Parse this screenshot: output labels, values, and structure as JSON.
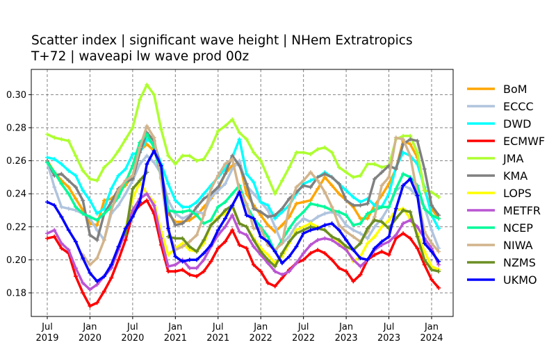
{
  "chart_data": {
    "type": "line",
    "title": [
      "Scatter index  |  significant wave height | NHem Extratropics",
      "T+72  |  waveapi lw wave prod 00z"
    ],
    "xlabel": "",
    "ylabel": "",
    "x_start": "2019-07",
    "x_step": "1 month",
    "xticks": [
      {
        "month": "2019-07",
        "label": [
          "Jul",
          "2019"
        ]
      },
      {
        "month": "2020-01",
        "label": [
          "Jan",
          "2020"
        ]
      },
      {
        "month": "2020-07",
        "label": [
          "Jul",
          "2020"
        ]
      },
      {
        "month": "2021-01",
        "label": [
          "Jan",
          "2021"
        ]
      },
      {
        "month": "2021-07",
        "label": [
          "Jul",
          "2021"
        ]
      },
      {
        "month": "2022-01",
        "label": [
          "Jan",
          "2022"
        ]
      },
      {
        "month": "2022-07",
        "label": [
          "Jul",
          "2022"
        ]
      },
      {
        "month": "2023-01",
        "label": [
          "Jan",
          "2023"
        ]
      },
      {
        "month": "2023-07",
        "label": [
          "Jul",
          "2023"
        ]
      },
      {
        "month": "2024-01",
        "label": [
          "Jan",
          "2024"
        ]
      }
    ],
    "yticks": [
      "0.18",
      "0.20",
      "0.22",
      "0.24",
      "0.26",
      "0.28",
      "0.30"
    ],
    "ylim": [
      0.1657,
      0.3153
    ],
    "grid": true,
    "legend_placement": "outside-right",
    "series": [
      {
        "name": "BoM",
        "color": "#ffa500",
        "values": [
          0.26,
          0.253,
          0.248,
          0.244,
          0.237,
          0.23,
          0.222,
          0.221,
          0.236,
          0.237,
          0.241,
          0.245,
          0.251,
          0.266,
          0.27,
          0.266,
          0.255,
          0.228,
          0.223,
          0.223,
          0.224,
          0.227,
          0.232,
          0.237,
          0.243,
          0.252,
          0.257,
          0.259,
          0.24,
          0.233,
          0.227,
          0.221,
          0.217,
          0.221,
          0.226,
          0.234,
          0.235,
          0.236,
          0.243,
          0.25,
          0.245,
          0.24,
          0.236,
          0.232,
          0.225,
          0.225,
          0.233,
          0.239,
          0.246,
          0.255,
          0.272,
          0.27,
          0.262,
          0.242,
          0.231,
          0.225
        ]
      },
      {
        "name": "ECCC",
        "color": "#b0c4de",
        "values": [
          0.259,
          0.244,
          0.232,
          0.231,
          0.23,
          0.228,
          0.225,
          0.218,
          0.212,
          0.228,
          0.233,
          0.24,
          0.248,
          0.258,
          0.263,
          0.259,
          0.252,
          0.236,
          0.228,
          0.225,
          0.227,
          0.229,
          0.228,
          0.238,
          0.242,
          0.246,
          0.255,
          0.26,
          0.245,
          0.24,
          0.235,
          0.23,
          0.22,
          0.21,
          0.214,
          0.221,
          0.225,
          0.223,
          0.226,
          0.228,
          0.229,
          0.227,
          0.221,
          0.218,
          0.216,
          0.213,
          0.22,
          0.225,
          0.232,
          0.242,
          0.245,
          0.243,
          0.238,
          0.232,
          0.218,
          0.207
        ]
      },
      {
        "name": "DWD",
        "color": "#00ffff",
        "values": [
          0.262,
          0.261,
          0.258,
          0.254,
          0.251,
          0.242,
          0.236,
          0.228,
          0.231,
          0.243,
          0.251,
          0.255,
          0.264,
          0.265,
          0.273,
          0.27,
          0.258,
          0.246,
          0.236,
          0.232,
          0.232,
          0.235,
          0.24,
          0.245,
          0.25,
          0.255,
          0.262,
          0.273,
          0.252,
          0.247,
          0.235,
          0.233,
          0.225,
          0.229,
          0.233,
          0.24,
          0.246,
          0.248,
          0.25,
          0.253,
          0.25,
          0.246,
          0.242,
          0.238,
          0.235,
          0.237,
          0.233,
          0.232,
          0.24,
          0.256,
          0.265,
          0.263,
          0.258,
          0.244,
          0.227,
          0.219
        ]
      },
      {
        "name": "ECMWF",
        "color": "#ff0000",
        "values": [
          0.213,
          0.214,
          0.207,
          0.204,
          0.19,
          0.18,
          0.172,
          0.174,
          0.181,
          0.189,
          0.2,
          0.212,
          0.228,
          0.233,
          0.236,
          0.228,
          0.209,
          0.193,
          0.193,
          0.194,
          0.191,
          0.19,
          0.193,
          0.199,
          0.207,
          0.211,
          0.218,
          0.209,
          0.207,
          0.197,
          0.193,
          0.186,
          0.184,
          0.189,
          0.194,
          0.198,
          0.2,
          0.204,
          0.206,
          0.204,
          0.2,
          0.195,
          0.193,
          0.187,
          0.191,
          0.2,
          0.203,
          0.205,
          0.203,
          0.213,
          0.216,
          0.213,
          0.207,
          0.197,
          0.188,
          0.183
        ]
      },
      {
        "name": "JMA",
        "color": "#adff2f",
        "values": [
          0.276,
          0.274,
          0.273,
          0.272,
          0.263,
          0.254,
          0.249,
          0.248,
          0.256,
          0.26,
          0.266,
          0.273,
          0.28,
          0.297,
          0.306,
          0.3,
          0.279,
          0.263,
          0.258,
          0.263,
          0.263,
          0.26,
          0.261,
          0.268,
          0.278,
          0.281,
          0.285,
          0.277,
          0.273,
          0.265,
          0.26,
          0.25,
          0.24,
          0.248,
          0.256,
          0.265,
          0.265,
          0.264,
          0.267,
          0.268,
          0.265,
          0.256,
          0.253,
          0.25,
          0.251,
          0.258,
          0.258,
          0.256,
          0.257,
          0.273,
          0.275,
          0.275,
          0.265,
          0.242,
          0.241,
          0.238
        ]
      },
      {
        "name": "KMA",
        "color": "#808080",
        "values": [
          0.26,
          0.251,
          0.252,
          0.248,
          0.244,
          0.236,
          0.215,
          0.212,
          0.228,
          0.235,
          0.243,
          0.247,
          0.249,
          0.265,
          0.277,
          0.272,
          0.255,
          0.23,
          0.221,
          0.222,
          0.226,
          0.232,
          0.237,
          0.24,
          0.244,
          0.252,
          0.263,
          0.257,
          0.246,
          0.231,
          0.229,
          0.226,
          0.227,
          0.231,
          0.237,
          0.241,
          0.245,
          0.244,
          0.25,
          0.252,
          0.25,
          0.246,
          0.236,
          0.233,
          0.233,
          0.234,
          0.249,
          0.253,
          0.257,
          0.255,
          0.27,
          0.273,
          0.272,
          0.255,
          0.233,
          0.227
        ]
      },
      {
        "name": "LOPS",
        "color": "#ffff00",
        "values": [
          null,
          null,
          null,
          null,
          null,
          null,
          null,
          null,
          null,
          null,
          null,
          0.219,
          0.237,
          0.247,
          0.24,
          0.235,
          0.217,
          0.203,
          0.207,
          0.21,
          0.206,
          0.205,
          0.21,
          0.221,
          0.226,
          0.228,
          0.232,
          0.222,
          0.22,
          0.213,
          0.207,
          0.203,
          0.198,
          0.202,
          0.21,
          0.218,
          0.22,
          0.222,
          0.22,
          0.218,
          0.214,
          0.211,
          0.207,
          0.199,
          0.202,
          0.21,
          0.214,
          0.22,
          0.224,
          0.23,
          0.231,
          0.225,
          0.216,
          0.205,
          0.196,
          0.194
        ]
      },
      {
        "name": "METFR",
        "color": "#ba55d3",
        "values": [
          0.216,
          0.218,
          0.21,
          0.206,
          0.195,
          0.186,
          0.182,
          0.185,
          0.19,
          0.195,
          0.206,
          0.217,
          0.23,
          0.237,
          0.24,
          0.233,
          0.213,
          0.196,
          0.197,
          0.2,
          0.195,
          0.195,
          0.2,
          0.208,
          0.215,
          0.22,
          0.227,
          0.217,
          0.215,
          0.208,
          0.203,
          0.198,
          0.193,
          0.191,
          0.193,
          0.198,
          0.204,
          0.209,
          0.212,
          0.213,
          0.212,
          0.209,
          0.206,
          0.2,
          0.196,
          0.2,
          0.206,
          0.209,
          0.211,
          0.215,
          0.222,
          0.224,
          0.22,
          0.213,
          0.207,
          0.197
        ]
      },
      {
        "name": "NCEP",
        "color": "#00fa9a",
        "values": [
          0.259,
          0.253,
          0.246,
          0.24,
          0.232,
          0.228,
          0.226,
          0.224,
          0.228,
          0.232,
          0.238,
          0.247,
          0.257,
          0.271,
          0.276,
          0.268,
          0.25,
          0.23,
          0.229,
          0.229,
          0.23,
          0.227,
          0.222,
          0.224,
          0.232,
          0.235,
          0.24,
          0.245,
          0.233,
          0.225,
          0.22,
          0.214,
          0.205,
          0.212,
          0.219,
          0.225,
          0.229,
          0.234,
          0.233,
          0.232,
          0.23,
          0.229,
          0.227,
          0.221,
          0.222,
          0.228,
          0.23,
          0.232,
          0.232,
          0.243,
          0.252,
          0.25,
          0.245,
          0.231,
          0.227,
          0.225
        ]
      },
      {
        "name": "NIWA",
        "color": "#d2b48c",
        "values": [
          null,
          null,
          null,
          null,
          null,
          0.203,
          0.197,
          0.201,
          0.212,
          0.23,
          0.242,
          0.248,
          0.251,
          0.268,
          0.281,
          0.274,
          0.249,
          0.218,
          0.206,
          0.208,
          0.211,
          0.215,
          0.227,
          0.243,
          0.251,
          0.258,
          0.261,
          0.242,
          0.234,
          0.219,
          0.219,
          0.209,
          0.206,
          0.21,
          0.232,
          0.244,
          0.248,
          0.253,
          0.248,
          0.241,
          0.232,
          0.221,
          0.217,
          0.214,
          0.211,
          0.217,
          0.226,
          0.245,
          0.25,
          0.274,
          0.273,
          0.263,
          0.24,
          0.217,
          0.21,
          0.205
        ]
      },
      {
        "name": "NZMS",
        "color": "#6b8e23",
        "values": [
          null,
          null,
          null,
          null,
          null,
          null,
          null,
          null,
          null,
          null,
          null,
          0.215,
          0.243,
          0.248,
          0.253,
          null,
          null,
          0.214,
          0.213,
          0.213,
          0.208,
          0.205,
          0.212,
          0.221,
          0.225,
          0.23,
          0.233,
          0.222,
          0.22,
          0.212,
          0.205,
          0.2,
          0.196,
          0.204,
          0.211,
          0.216,
          0.218,
          0.22,
          0.219,
          0.218,
          0.214,
          0.212,
          0.208,
          0.206,
          0.21,
          0.219,
          0.224,
          0.223,
          0.219,
          0.225,
          0.23,
          0.229,
          0.214,
          0.2,
          0.194,
          0.193
        ]
      },
      {
        "name": "UKMO",
        "color": "#0000ff",
        "values": [
          0.235,
          0.233,
          0.226,
          0.218,
          0.211,
          0.201,
          0.192,
          0.187,
          0.19,
          0.197,
          0.208,
          0.219,
          0.226,
          0.235,
          0.258,
          0.266,
          0.257,
          0.219,
          0.202,
          0.199,
          0.2,
          0.2,
          0.204,
          0.209,
          0.218,
          0.225,
          0.233,
          0.241,
          0.227,
          0.225,
          0.214,
          0.211,
          0.205,
          0.198,
          0.202,
          0.208,
          0.216,
          0.218,
          0.219,
          0.221,
          0.222,
          0.218,
          0.212,
          0.206,
          0.201,
          0.2,
          0.207,
          0.211,
          0.214,
          0.231,
          0.245,
          0.249,
          0.239,
          0.21,
          0.205,
          0.199
        ]
      }
    ]
  }
}
